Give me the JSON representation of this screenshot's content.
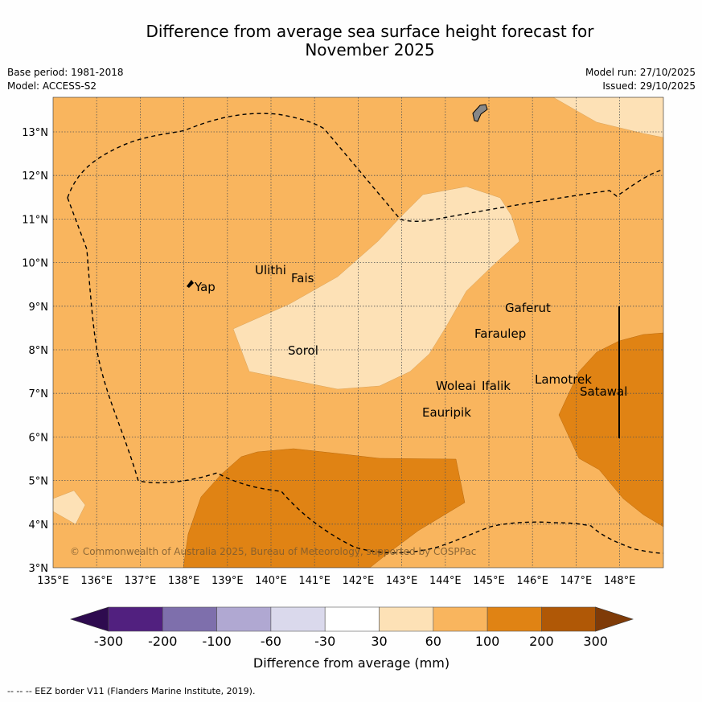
{
  "title_line1": "Difference from average sea surface height forecast for",
  "title_line2": "November 2025",
  "meta": {
    "base_period": "Base period: 1981-2018",
    "model": "Model: ACCESS-S2",
    "model_run": "Model run: 27/10/2025",
    "issued": "Issued: 29/10/2025"
  },
  "map": {
    "lon_ticks": [
      "135°E",
      "136°E",
      "137°E",
      "138°E",
      "139°E",
      "140°E",
      "141°E",
      "142°E",
      "143°E",
      "144°E",
      "145°E",
      "146°E",
      "147°E",
      "148°E"
    ],
    "lat_ticks": [
      "3°N",
      "4°N",
      "5°N",
      "6°N",
      "7°N",
      "8°N",
      "9°N",
      "10°N",
      "11°N",
      "12°N",
      "13°N"
    ],
    "places": [
      "Ulithi",
      "Fais",
      "Yap",
      "Sorol",
      "Gaferut",
      "Faraulep",
      "Lamotrek",
      "Woleai",
      "Ifalik",
      "Satawal",
      "Eauripik"
    ],
    "copyright": "© Commonwealth of Australia 2025, Bureau of Meteorology, supported by COSPPac"
  },
  "colorbar": {
    "ticks": [
      "-300",
      "-200",
      "-100",
      "-60",
      "-30",
      "30",
      "60",
      "100",
      "200",
      "300"
    ],
    "colors": [
      "#51207f",
      "#7e6fac",
      "#b0a8d2",
      "#dad9ec",
      "#ffffff",
      "#fde1b6",
      "#f9b55e",
      "#e08314",
      "#b05806"
    ],
    "extend_low": "#2e0b4f",
    "extend_high": "#7f3b08",
    "label": "Difference from average (mm)"
  },
  "legend_note": "--  --  -- EEZ border V11 (Flanders Marine Institute, 2019)."
}
